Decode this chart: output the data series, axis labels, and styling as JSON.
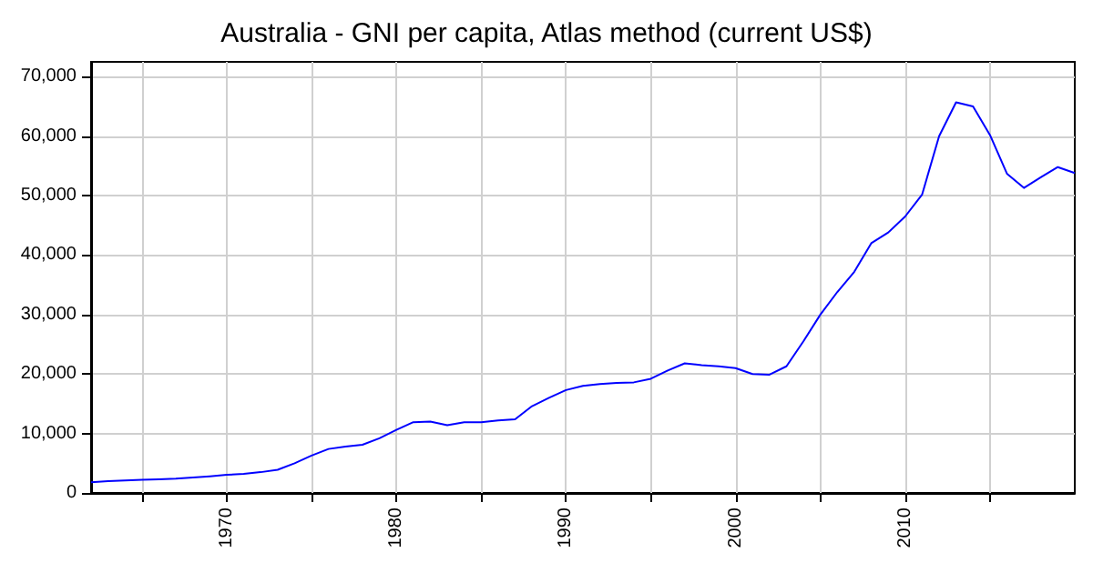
{
  "chart_data": {
    "type": "line",
    "title": "Australia - GNI per capita, Atlas method (current US$)",
    "x": [
      1962,
      1963,
      1964,
      1965,
      1966,
      1967,
      1968,
      1969,
      1970,
      1971,
      1972,
      1973,
      1974,
      1975,
      1976,
      1977,
      1978,
      1979,
      1980,
      1981,
      1982,
      1983,
      1984,
      1985,
      1986,
      1987,
      1988,
      1989,
      1990,
      1991,
      1992,
      1993,
      1994,
      1995,
      1996,
      1997,
      1998,
      1999,
      2000,
      2001,
      2002,
      2003,
      2004,
      2005,
      2006,
      2007,
      2008,
      2009,
      2010,
      2011,
      2012,
      2013,
      2014,
      2015,
      2016,
      2017,
      2018,
      2019,
      2020
    ],
    "series": [
      {
        "color": "#0000ff",
        "values": [
          1800,
          2000,
          2100,
          2200,
          2300,
          2400,
          2600,
          2800,
          3050,
          3200,
          3500,
          3900,
          5000,
          6300,
          7400,
          7800,
          8100,
          9200,
          10600,
          11900,
          12000,
          11400,
          11900,
          11900,
          12200,
          12400,
          14600,
          16000,
          17300,
          18000,
          18300,
          18500,
          18600,
          19200,
          20600,
          21800,
          21500,
          21300,
          21000,
          20000,
          19900,
          21300,
          25500,
          30000,
          33800,
          37200,
          42000,
          43800,
          46500,
          50200,
          60000,
          65700,
          65000,
          60200,
          53700,
          51300,
          53100,
          54800,
          53800
        ]
      }
    ],
    "xlim": [
      1962,
      2020
    ],
    "xticks": [
      {
        "value": 1965,
        "label": null
      },
      1970,
      {
        "value": 1975,
        "label": null
      },
      1980,
      {
        "value": 1985,
        "label": null
      },
      1990,
      {
        "value": 1995,
        "label": null
      },
      2000,
      {
        "value": 2005,
        "label": null
      },
      2010,
      {
        "value": 2015,
        "label": null
      }
    ],
    "ylim": [
      0,
      72500
    ],
    "yticks": [
      0,
      {
        "value": 10000,
        "label": "10,000"
      },
      {
        "value": 20000,
        "label": "20,000"
      },
      {
        "value": 30000,
        "label": "30,000"
      },
      {
        "value": 40000,
        "label": "40,000"
      },
      {
        "value": 50000,
        "label": "50,000"
      },
      {
        "value": 60000,
        "label": "60,000"
      },
      {
        "value": 70000,
        "label": "70,000"
      }
    ],
    "grid": true,
    "marker": "none",
    "line_style": "solid"
  }
}
